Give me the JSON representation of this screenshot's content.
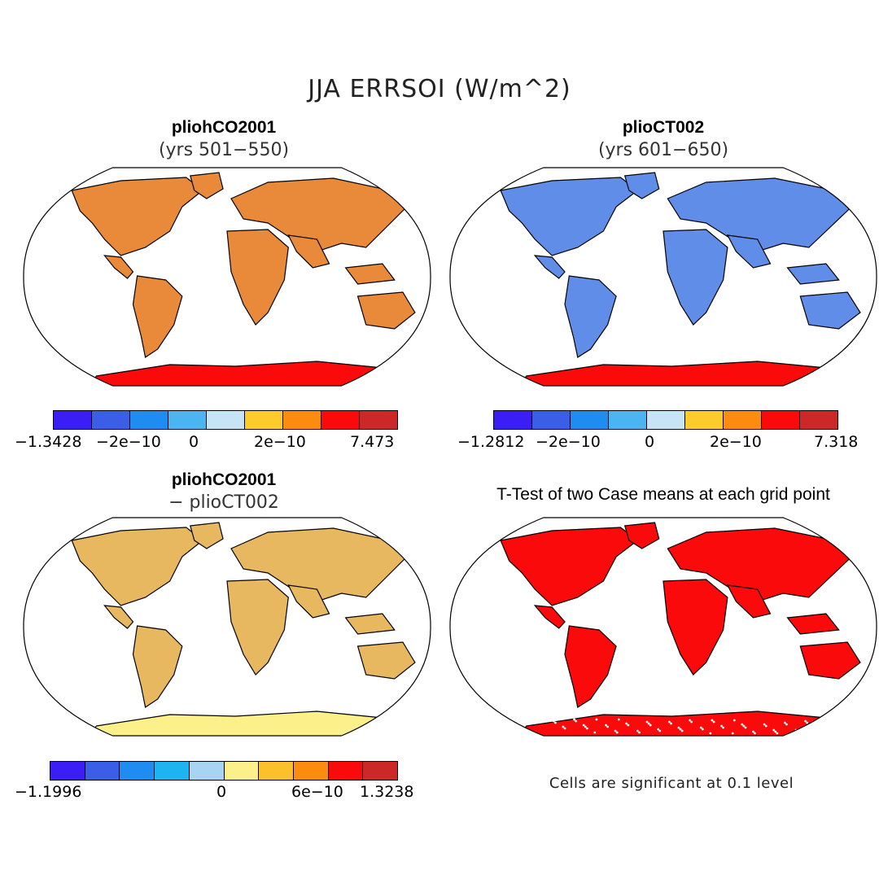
{
  "title": "JJA ERRSOI (W/m^2)",
  "panels": {
    "top_left": {
      "title": "pliohCO2001",
      "subtitle": "(yrs 501−550)"
    },
    "top_right": {
      "title": "plioCT002",
      "subtitle": "(yrs 601−650)"
    },
    "bottom_left": {
      "title": "pliohCO2001",
      "subtitle": "− plioCT002"
    },
    "bottom_right": {
      "title": "T-Test of two Case means at each grid point",
      "note": "Cells are significant at 0.1 level"
    }
  },
  "colorbars": {
    "top_left": {
      "colors": [
        "#3b1ef5",
        "#3a5ee6",
        "#1e8cf0",
        "#4cb4f0",
        "#c6e4f6",
        "#fbcc2b",
        "#fb8c10",
        "#fa0a0a",
        "#cc2828"
      ],
      "labels": [
        "−1.3428",
        "−2e−10",
        "0",
        "2e−10",
        "7.473"
      ]
    },
    "top_right": {
      "colors": [
        "#3b1ef5",
        "#3a5ee6",
        "#1e8cf0",
        "#4cb4f0",
        "#c6e4f6",
        "#fbcc2b",
        "#fb8c10",
        "#fa0a0a",
        "#cc2828"
      ],
      "labels": [
        "−1.2812",
        "−2e−10",
        "0",
        "2e−10",
        "7.318"
      ]
    },
    "bottom_left": {
      "colors": [
        "#3b1ef5",
        "#3a5ee6",
        "#1e8cf0",
        "#1eb4f0",
        "#a6d4f2",
        "#fbf08a",
        "#fbc02b",
        "#fb8c10",
        "#fa0a0a",
        "#cc2828"
      ],
      "labels": [
        "−1.1996",
        "0",
        "6e−10",
        "1.3238"
      ]
    }
  },
  "map_colors": {
    "top_left": "#e98a3a",
    "top_right": "#5f8de8",
    "bottom_left": "#e8b860",
    "bottom_right": "#fa0a0a",
    "antarctica_tl": "#fa0a0a",
    "antarctica_tr": "#fa0a0a",
    "antarctica_bl": "#fbf08a",
    "antarctica_br": "#fa0a0a"
  }
}
